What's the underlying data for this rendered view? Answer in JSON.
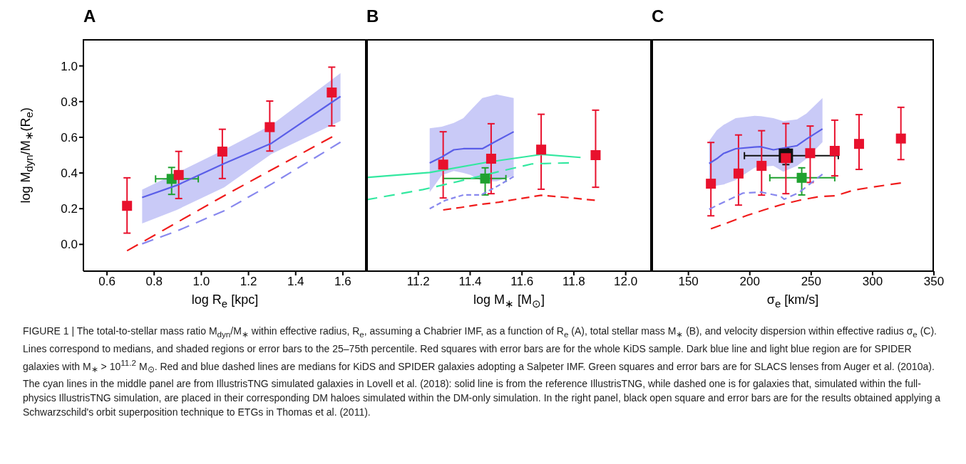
{
  "chart_data": [
    {
      "type": "scatter",
      "title": "A",
      "xlabel": "log R$_{e}$ [kpc]",
      "ylabel": "log M$_{dyn}$/M$_{∗}$(R$_{e}$)",
      "xlim": [
        0.5,
        1.7
      ],
      "xticks": [
        0.6,
        0.8,
        {
          "value": 1,
          "label": "1.0"
        },
        1.2,
        1.4,
        1.6
      ],
      "ylim": [
        -0.15,
        1.15
      ],
      "yticks": [
        {
          "value": 0,
          "label": "0.0"
        },
        0.2,
        0.4,
        0.6,
        0.8,
        {
          "value": 1,
          "label": "1.0"
        }
      ],
      "annotations": [
        "FIGURE 1 | The total-to-stellar mass ratio M$_{dyn}$/M$_{∗}$ within effective radius, R$_{e}$, assuming a Chabrier IMF, as a function of R$_{e}$ (A), total stellar mass M$_{∗}$ (B), and velocity dispersion within effective radius σ$_{e}$ (C). Lines correspond to medians, and shaded regions or error bars to the 25–75th percentile. Red squares with error bars are for the whole KiDS sample. Dark blue line and light blue region are for SPIDER galaxies with M$_{∗}$ > 10$^{11.2}$ M$_{⊙}$. Red and blue dashed lines are medians for KiDS and SPIDER galaxies adopting a Salpeter IMF. Green squares and error bars are for SLACS lenses from Auger et al. (2010a). The cyan lines in the middle panel are from IllustrisTNG simulated galaxies in Lovell et al. (2018): solid line is from the reference IllustrisTNG, while dashed one is for galaxies that, simulated within the full-physics IllustrisTNG simulation, are placed in their corresponding DM haloes simulated within the DM-only simulation. In the right panel, black open square and error bars are for the results obtained applying a Schwarzschild's orbit superposition technique to ETGs in Thomas et al. (2011)."
      ],
      "series": [
        {
          "type": "line",
          "color": "#5a5ee8",
          "x": [
            0.749,
            0.896,
            1.097,
            1.298,
            1.59
          ],
          "values": [
            0.263,
            0.331,
            0.453,
            0.567,
            0.829
          ],
          "lower": [
            0.117,
            0.193,
            0.32,
            0.507,
            0.691
          ],
          "upper": [
            0.307,
            0.4,
            0.531,
            0.669,
            0.96
          ],
          "line_style": "solid",
          "marker": "none"
        },
        {
          "type": "line",
          "color": "#f01c1c",
          "x": [
            0.685,
            1.097,
            1.555
          ],
          "values": [
            -0.036,
            0.273,
            0.603
          ],
          "line_style": "dashed",
          "marker": "none"
        },
        {
          "type": "line",
          "color": "#8888ee",
          "x": [
            0.749,
            0.9,
            1.1,
            1.3,
            1.525,
            1.59
          ],
          "values": [
            0.003,
            0.077,
            0.19,
            0.34,
            0.52,
            0.573
          ],
          "line_style": "dashed",
          "marker": "none"
        },
        {
          "type": "scatter",
          "color": "#1fa12f",
          "x": [
            0.874
          ],
          "values": [
            0.367
          ],
          "errors": [
            [
              0.28,
              0.431
            ]
          ],
          "xerrors": [
            [
              0.806,
              0.987
            ]
          ],
          "marker": "square"
        },
        {
          "type": "scatter",
          "color": "#e8112d",
          "x": [
            0.685,
            0.904,
            1.089,
            1.29,
            1.553
          ],
          "values": [
            0.216,
            0.389,
            0.52,
            0.657,
            0.851
          ],
          "errors": [
            [
              0.063,
              0.373
            ],
            [
              0.257,
              0.521
            ],
            [
              0.369,
              0.645
            ],
            [
              0.523,
              0.803
            ],
            [
              0.664,
              0.993
            ]
          ],
          "marker": "square"
        }
      ]
    },
    {
      "type": "scatter",
      "title": "B",
      "xlabel": "log M$_{∗}$ [M$_{⊙}$]",
      "xlim": [
        11.0,
        12.1
      ],
      "xticks": [
        11.2,
        11.4,
        11.6,
        11.8,
        {
          "value": 12,
          "label": "12.0"
        }
      ],
      "ylim": [
        -0.15,
        1.15
      ],
      "yticks": [
        0,
        0.2,
        0.4,
        0.6,
        0.8,
        1
      ],
      "tick_labels": "x",
      "series": [
        {
          "type": "line",
          "color": "#5a5ee8",
          "x": [
            11.244,
            11.291,
            11.337,
            11.374,
            11.401,
            11.447,
            11.502,
            11.568
          ],
          "values": [
            0.456,
            0.49,
            0.53,
            0.536,
            0.536,
            0.536,
            0.58,
            0.631
          ],
          "lower": [
            0.293,
            0.387,
            0.411,
            0.4,
            0.389,
            0.353,
            0.353,
            0.383
          ],
          "upper": [
            0.651,
            0.66,
            0.68,
            0.707,
            0.75,
            0.82,
            0.84,
            0.82
          ],
          "line_style": "solid",
          "marker": "none"
        },
        {
          "type": "line",
          "color": "#33e8a0",
          "x": [
            11.0,
            11.244,
            11.465,
            11.675,
            11.826
          ],
          "values": [
            0.375,
            0.403,
            0.46,
            0.504,
            0.487
          ],
          "line_style": "solid",
          "marker": "none"
        },
        {
          "type": "line",
          "color": "#33e8a0",
          "x": [
            11.0,
            11.218,
            11.355,
            11.497,
            11.639,
            11.781
          ],
          "values": [
            0.25,
            0.307,
            0.353,
            0.403,
            0.451,
            0.457
          ],
          "line_style": "dashed",
          "marker": "none"
        },
        {
          "type": "line",
          "color": "#8888ee",
          "x": [
            11.244,
            11.305,
            11.374,
            11.442,
            11.511,
            11.568
          ],
          "values": [
            0.2,
            0.247,
            0.277,
            0.277,
            0.331,
            0.38
          ],
          "line_style": "dashed",
          "marker": "none"
        },
        {
          "type": "line",
          "color": "#f01c1c",
          "x": [
            11.296,
            11.365,
            11.438,
            11.511,
            11.579,
            11.674,
            11.794,
            11.881
          ],
          "values": [
            0.193,
            0.207,
            0.224,
            0.236,
            0.253,
            0.275,
            0.26,
            0.247
          ],
          "line_style": "dashed",
          "marker": "none"
        },
        {
          "type": "scatter",
          "color": "#1fa12f",
          "x": [
            11.458
          ],
          "values": [
            0.369
          ],
          "errors": [
            [
              0.277,
              0.429
            ]
          ],
          "xerrors": [
            [
              11.296,
              11.538
            ]
          ],
          "marker": "square"
        },
        {
          "type": "scatter",
          "color": "#e8112d",
          "x": [
            11.296,
            11.481,
            11.674,
            11.884
          ],
          "values": [
            0.447,
            0.48,
            0.531,
            0.5
          ],
          "errors": [
            [
              0.26,
              0.631
            ],
            [
              0.284,
              0.676
            ],
            [
              0.309,
              0.729
            ],
            [
              0.32,
              0.752
            ]
          ],
          "marker": "square"
        }
      ]
    },
    {
      "type": "scatter",
      "title": "C",
      "xlabel": "σ$_{e}$ [km/s]",
      "xlim": [
        120,
        350
      ],
      "xticks": [
        150,
        200,
        250,
        300,
        350
      ],
      "ylim": [
        -0.15,
        1.15
      ],
      "yticks": [
        0,
        0.2,
        0.4,
        0.6,
        0.8,
        1
      ],
      "tick_labels": "x",
      "series": [
        {
          "type": "line",
          "color": "#5a5ee8",
          "x": [
            166.9,
            173.1,
            178.8,
            188.5,
            203.8,
            209,
            219.2,
            227.3,
            238.5,
            246.2,
            259.2
          ],
          "values": [
            0.453,
            0.48,
            0.51,
            0.536,
            0.545,
            0.547,
            0.53,
            null,
            0.553,
            0.59,
            0.647
          ],
          "lower": [
            0.32,
            0.33,
            0.336,
            0.36,
            0.429,
            0.435,
            0.44,
            0.407,
            0.44,
            0.48,
            0.573
          ],
          "upper": [
            0.58,
            0.64,
            0.67,
            0.707,
            0.72,
            0.718,
            0.707,
            0.69,
            0.7,
            0.733,
            0.82
          ],
          "line_style": "solid",
          "marker": "none"
        },
        {
          "type": "line",
          "color": "#8888ee",
          "x": [
            166.9,
            179.8,
            194.2,
            209,
            225,
            228,
            240,
            259.2
          ],
          "values": [
            0.197,
            0.24,
            0.287,
            0.293,
            0.27,
            0.253,
            0.29,
            0.393
          ],
          "line_style": "dashed",
          "marker": "none"
        },
        {
          "type": "line",
          "color": "#f01c1c",
          "x": [
            168.3,
            182.7,
            198.1,
            211.5,
            225.9,
            240.4,
            255.8,
            270.2,
            284.6,
            299,
            323.1
          ],
          "values": [
            0.087,
            0.123,
            0.163,
            0.193,
            0.223,
            0.247,
            0.267,
            0.273,
            0.304,
            0.32,
            0.344
          ],
          "line_style": "dashed",
          "marker": "none"
        },
        {
          "type": "scatter",
          "color": "#1fa12f",
          "x": [
            242.3
          ],
          "values": [
            0.373
          ],
          "errors": [
            [
              0.277,
              0.429
            ]
          ],
          "xerrors": [
            [
              216.3,
              269.2
            ]
          ],
          "marker": "square"
        },
        {
          "type": "scatter",
          "color": "#111111",
          "x": [
            229.4
          ],
          "values": [
            0.497
          ],
          "errors": [
            [
              0.447,
              0.537
            ]
          ],
          "xerrors": [
            [
              195.6,
              272.1
            ]
          ],
          "marker": "square"
        },
        {
          "type": "scatter",
          "color": "#e8112d",
          "x": [
            168.3,
            190.8,
            209.6,
            229.4,
            249.2,
            269.2,
            289,
            323.1
          ],
          "values": [
            0.34,
            0.397,
            0.44,
            0.483,
            0.511,
            0.524,
            0.563,
            0.593
          ],
          "errors": [
            [
              0.16,
              0.571
            ],
            [
              0.22,
              0.613
            ],
            [
              0.276,
              0.637
            ],
            [
              0.284,
              0.677
            ],
            [
              0.347,
              0.663
            ],
            [
              0.384,
              0.696
            ],
            [
              0.42,
              0.727
            ],
            [
              0.475,
              0.768
            ]
          ],
          "marker": "square"
        }
      ]
    }
  ]
}
